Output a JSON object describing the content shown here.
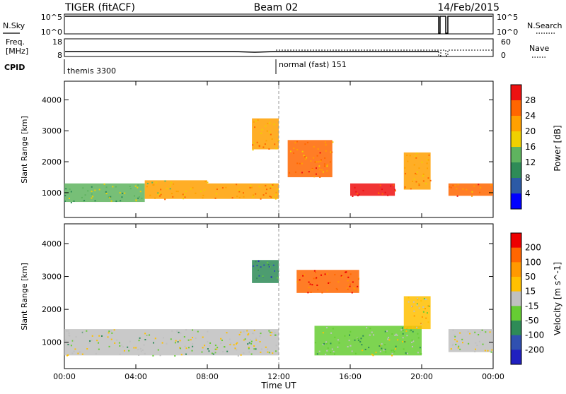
{
  "header": {
    "title": "TIGER (fitACF)",
    "beam": "Beam 02",
    "date": "14/Feb/2015"
  },
  "nsky_panel": {
    "left_label": "N.Sky",
    "right_label": "N.Search",
    "left_ticks": [
      "10^5",
      "10^0"
    ],
    "right_ticks": [
      "10^5",
      "10^0"
    ]
  },
  "freq_panel": {
    "left_label_line1": "Freq.",
    "left_label_line2": "[MHz]",
    "right_label": "Nave",
    "left_ticks": [
      "18",
      "8"
    ],
    "right_ticks": [
      "60",
      "0"
    ]
  },
  "cpid_panel": {
    "label": "CPID",
    "modes": [
      {
        "name": "themis 3300",
        "start": "00:00"
      },
      {
        "name": "normal (fast) 151",
        "start": "12:00"
      }
    ]
  },
  "colors": {
    "power_scale": [
      "#0000ff",
      "#2c5aa6",
      "#2e8b57",
      "#5fb45f",
      "#f0d000",
      "#ffa000",
      "#ff6600",
      "#ee1111"
    ],
    "velocity_scale": [
      "#ee0000",
      "#ff6600",
      "#ff9900",
      "#ffc000",
      "#c0c0c0",
      "#66cc33",
      "#2e8b57",
      "#3050b0",
      "#2020c0"
    ]
  },
  "chart_data": [
    {
      "type": "heatmap",
      "title": "Power",
      "ylabel": "Slant Range [km]",
      "xlabel": "",
      "x_ticks": [
        "00:00",
        "04:00",
        "08:00",
        "12:00",
        "16:00",
        "20:00",
        "00:00"
      ],
      "y_ticks": [
        "1000",
        "2000",
        "3000",
        "4000"
      ],
      "ylim": [
        200,
        4600
      ],
      "colorbar": {
        "label": "Power [dB]",
        "ticks": [
          "4",
          "8",
          "12",
          "16",
          "20",
          "24",
          "28"
        ],
        "range": [
          0,
          32
        ]
      },
      "features": [
        {
          "start_hour": 0.0,
          "end_hour": 4.5,
          "range_km": [
            700,
            1300
          ],
          "level_db": 14
        },
        {
          "start_hour": 4.5,
          "end_hour": 8.0,
          "range_km": [
            800,
            1400
          ],
          "level_db": 20
        },
        {
          "start_hour": 8.0,
          "end_hour": 12.0,
          "range_km": [
            800,
            1300
          ],
          "level_db": 22
        },
        {
          "start_hour": 10.5,
          "end_hour": 12.0,
          "range_km": [
            2400,
            3400
          ],
          "level_db": 22
        },
        {
          "start_hour": 12.5,
          "end_hour": 15.0,
          "range_km": [
            1500,
            2700
          ],
          "level_db": 24
        },
        {
          "start_hour": 16.0,
          "end_hour": 18.5,
          "range_km": [
            900,
            1300
          ],
          "level_db": 30
        },
        {
          "start_hour": 19.0,
          "end_hour": 20.5,
          "range_km": [
            1100,
            2300
          ],
          "level_db": 22
        },
        {
          "start_hour": 21.5,
          "end_hour": 24.0,
          "range_km": [
            900,
            1300
          ],
          "level_db": 24
        }
      ]
    },
    {
      "type": "heatmap",
      "title": "Velocity",
      "ylabel": "Slant Range [km]",
      "xlabel": "Time UT",
      "x_ticks": [
        "00:00",
        "04:00",
        "08:00",
        "12:00",
        "16:00",
        "20:00",
        "00:00"
      ],
      "y_ticks": [
        "1000",
        "2000",
        "3000",
        "4000"
      ],
      "ylim": [
        200,
        4600
      ],
      "colorbar": {
        "label": "Velocity [m s^-1]",
        "ticks": [
          "200",
          "100",
          "50",
          "15",
          "-15",
          "-50",
          "-100",
          "-200"
        ],
        "range": [
          -250,
          250
        ]
      },
      "features": [
        {
          "start_hour": 0.0,
          "end_hour": 12.0,
          "range_km": [
            600,
            1400
          ],
          "level_ms": -10
        },
        {
          "start_hour": 10.5,
          "end_hour": 12.0,
          "range_km": [
            2800,
            3500
          ],
          "level_ms": -120
        },
        {
          "start_hour": 13.0,
          "end_hour": 16.5,
          "range_km": [
            2500,
            3200
          ],
          "level_ms": 180
        },
        {
          "start_hour": 14.0,
          "end_hour": 20.0,
          "range_km": [
            600,
            1500
          ],
          "level_ms": -40
        },
        {
          "start_hour": 19.0,
          "end_hour": 20.5,
          "range_km": [
            1400,
            2400
          ],
          "level_ms": 40
        },
        {
          "start_hour": 21.5,
          "end_hour": 24.0,
          "range_km": [
            700,
            1400
          ],
          "level_ms": 0
        }
      ]
    }
  ]
}
